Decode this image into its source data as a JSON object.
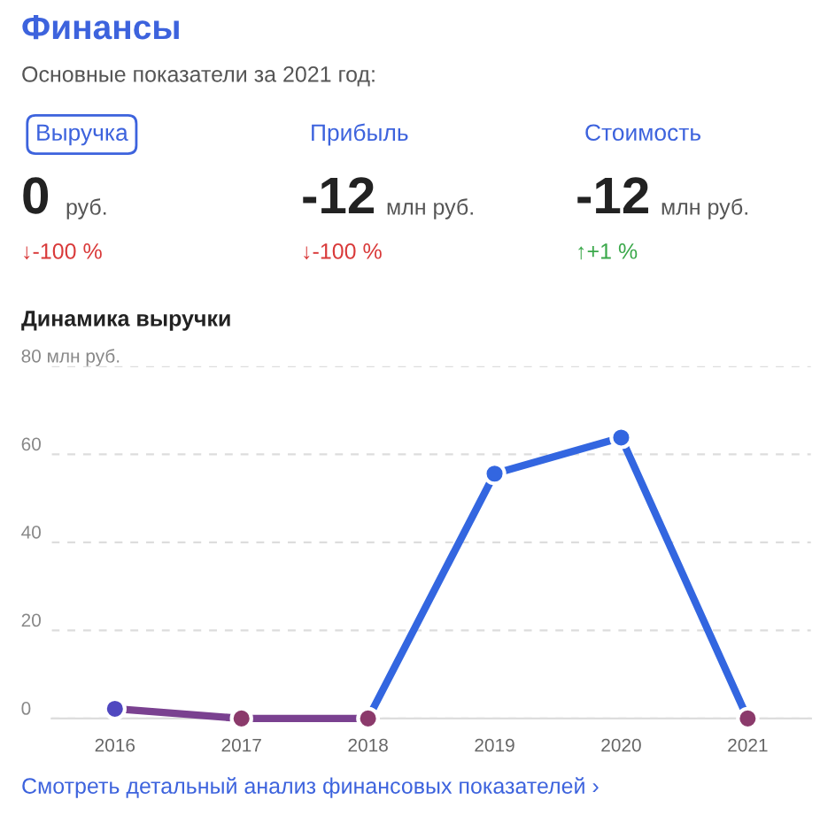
{
  "chart_data": [
    {
      "type": "other",
      "title": "Финансы",
      "subtitle": "Основные показатели за 2021 год:",
      "annotations": [
        "Выручка",
        "0",
        "руб.",
        "↓-100 %",
        "Прибыль",
        "-12",
        "млн руб.",
        "↓-100 %",
        "Стоимость",
        "-12",
        "млн руб.",
        "↑+1 %"
      ]
    },
    {
      "type": "line",
      "title": "Динамика выручки",
      "categories": [
        "2016",
        "2017",
        "2018",
        "2019",
        "2020",
        "2021"
      ],
      "series": [
        {
          "color": "#7a4190",
          "colors": [
            "#5048c0",
            "#8b3a6b",
            "#8b3a6b",
            null,
            null,
            null
          ],
          "values": [
            2.2,
            0,
            0,
            null,
            null,
            null
          ]
        },
        {
          "color": "#3366e0",
          "colors": [
            null,
            null,
            "#8b3a6b",
            "#3366e0",
            "#3366e0",
            "#8b3a6b"
          ],
          "values": [
            null,
            null,
            0,
            55.6,
            63.8,
            0
          ]
        }
      ],
      "ylim": [
        0,
        80
      ],
      "yticks": [
        0,
        20,
        40,
        60,
        {
          "value": 80,
          "label": "80 млн руб."
        }
      ],
      "grid": "y",
      "marker": "circle",
      "line_style": "solid",
      "legend": false,
      "annotations": [
        "Смотреть детальный анализ финансовых показателей ›"
      ]
    }
  ]
}
